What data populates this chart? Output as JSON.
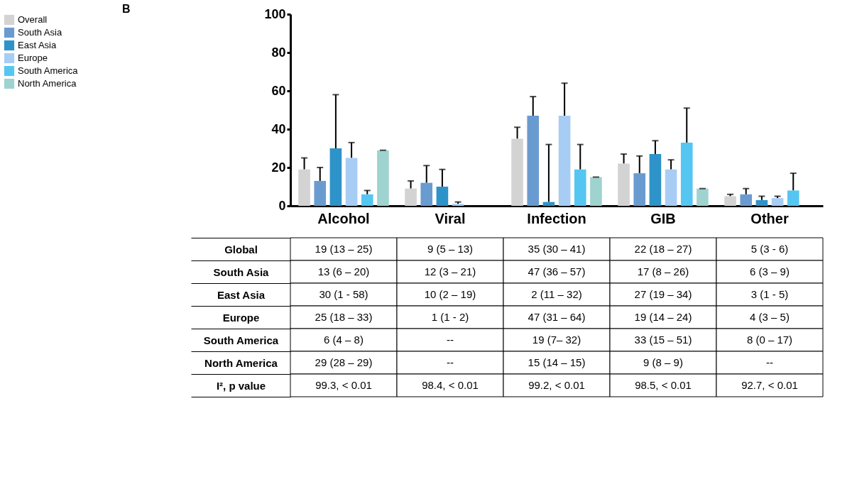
{
  "chart_data": {
    "type": "bar",
    "title": "B",
    "categories": [
      "Alcohol",
      "Viral",
      "Infection",
      "GIB",
      "Other"
    ],
    "series": [
      {
        "name": "Overall",
        "color": "#d3d3d3",
        "values": [
          19,
          9,
          35,
          22,
          5
        ],
        "errors": [
          [
            19,
            25
          ],
          [
            9,
            13
          ],
          [
            35,
            41
          ],
          [
            22,
            27
          ],
          [
            5,
            6
          ]
        ],
        "value_labels": [
          "19 (13 – 25)",
          "9 (5 – 13)",
          "35 (30 – 41)",
          "22 (18 – 27)",
          "5 (3 - 6)"
        ]
      },
      {
        "name": "South Asia",
        "color": "#6a9bd0",
        "values": [
          13,
          12,
          47,
          17,
          6
        ],
        "errors": [
          [
            13,
            20
          ],
          [
            12,
            21
          ],
          [
            47,
            57
          ],
          [
            17,
            26
          ],
          [
            6,
            9
          ]
        ],
        "value_labels": [
          "13 (6 – 20)",
          "12 (3 – 21)",
          "47 (36 – 57)",
          "17 (8 – 26)",
          "6 (3 – 9)"
        ]
      },
      {
        "name": "East Asia",
        "color": "#2e93c9",
        "values": [
          30,
          10,
          2,
          27,
          3
        ],
        "errors": [
          [
            30,
            58
          ],
          [
            10,
            19
          ],
          [
            2,
            32
          ],
          [
            27,
            34
          ],
          [
            3,
            5
          ]
        ],
        "value_labels": [
          "30 (1 - 58)",
          "10 (2 – 19)",
          "2 (11 – 32)",
          "27 (19 – 34)",
          "3 (1 - 5)"
        ]
      },
      {
        "name": "Europe",
        "color": "#a8cdf5",
        "values": [
          25,
          1,
          47,
          19,
          4
        ],
        "errors": [
          [
            25,
            33
          ],
          [
            1,
            2
          ],
          [
            47,
            64
          ],
          [
            19,
            24
          ],
          [
            4,
            5
          ]
        ],
        "value_labels": [
          "25 (18 – 33)",
          "1 (1 - 2)",
          "47 (31 – 64)",
          "19 (14 – 24)",
          "4 (3 – 5)"
        ]
      },
      {
        "name": "South America",
        "color": "#55c6f2",
        "values": [
          6,
          null,
          19,
          33,
          8
        ],
        "errors": [
          [
            6,
            8
          ],
          null,
          [
            19,
            32
          ],
          [
            33,
            51
          ],
          [
            8,
            17
          ]
        ],
        "value_labels": [
          "6 (4 – 8)",
          "--",
          "19 (7– 32)",
          "33 (15 – 51)",
          "8 (0 – 17)"
        ]
      },
      {
        "name": "North America",
        "color": "#9fd3cf",
        "values": [
          29,
          null,
          15,
          9,
          null
        ],
        "errors": [
          [
            29,
            29
          ],
          null,
          [
            15,
            15
          ],
          [
            9,
            9
          ],
          null
        ],
        "value_labels": [
          "29 (28 – 29)",
          "--",
          "15 (14 – 15)",
          "9 (8 – 9)",
          "--"
        ]
      }
    ],
    "annotations": [
      "Global",
      "I², p value",
      "99.3, < 0.01",
      "98.4, < 0.01",
      "99.2, < 0.01",
      "98.5, < 0.01",
      "92.7, < 0.01"
    ],
    "ylim": [
      0,
      100
    ],
    "yticks": [
      0,
      20,
      40,
      60,
      80,
      100
    ],
    "grid": false,
    "legend": "left"
  }
}
